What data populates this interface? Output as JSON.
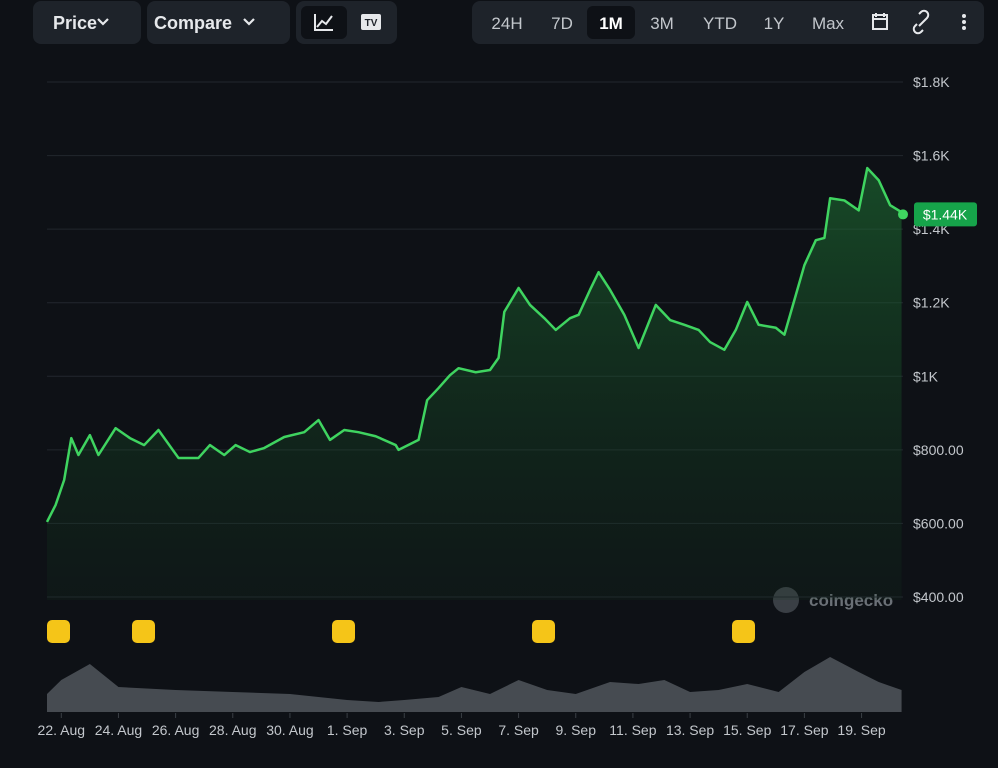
{
  "toolbar": {
    "dropdowns": [
      "Price",
      "Compare"
    ],
    "ranges": [
      "24H",
      "7D",
      "1M",
      "3M",
      "YTD",
      "1Y",
      "Max"
    ],
    "active_range": 2
  },
  "watermark": "coingecko",
  "chart_data": {
    "type": "line",
    "x": [
      -0.5,
      -0.2,
      0.1,
      0.35,
      0.6,
      1.0,
      1.3,
      1.9,
      2.4,
      2.9,
      3.4,
      4.1,
      4.8,
      5.2,
      5.7,
      6.1,
      6.6,
      7.1,
      7.8,
      8.5,
      9.0,
      9.4,
      9.9,
      10.4,
      11.0,
      11.7,
      11.8,
      12.5,
      12.8,
      13.2,
      13.6,
      13.9,
      14.5,
      15.0,
      15.3,
      15.5,
      16.0,
      16.4,
      16.9,
      17.3,
      17.8,
      18.1,
      18.5,
      18.8,
      19.2,
      19.7,
      20.2,
      20.8,
      21.3,
      21.8,
      22.3,
      22.7,
      23.2,
      23.6,
      24.0,
      24.4,
      25.0,
      25.3,
      25.7,
      26.0,
      26.4,
      26.7,
      26.9,
      27.4,
      27.9,
      28.2,
      28.6,
      29.0,
      29.4
    ],
    "series": [
      {
        "name": "Price",
        "color": "#3fd460",
        "values": [
          604,
          650,
          718,
          832,
          786,
          840,
          786,
          859,
          832,
          813,
          854,
          778,
          778,
          813,
          786,
          813,
          794,
          805,
          835,
          848,
          881,
          827,
          854,
          848,
          837,
          813,
          800,
          827,
          935,
          968,
          1003,
          1022,
          1011,
          1017,
          1050,
          1175,
          1240,
          1194,
          1158,
          1126,
          1158,
          1167,
          1235,
          1283,
          1235,
          1167,
          1077,
          1194,
          1153,
          1140,
          1126,
          1093,
          1072,
          1126,
          1202,
          1140,
          1132,
          1113,
          1221,
          1302,
          1370,
          1376,
          1484,
          1478,
          1451,
          1566,
          1533,
          1465,
          1446
        ]
      }
    ],
    "current_price": 1440,
    "current_price_label": "$1.44K",
    "xlim": [
      -0.5,
      29.45
    ],
    "xticks": [
      {
        "value": 0,
        "label": "22. Aug"
      },
      {
        "value": 2,
        "label": "24. Aug"
      },
      {
        "value": 4,
        "label": "26. Aug"
      },
      {
        "value": 6,
        "label": "28. Aug"
      },
      {
        "value": 8,
        "label": "30. Aug"
      },
      {
        "value": 10,
        "label": "1. Sep"
      },
      {
        "value": 12,
        "label": "3. Sep"
      },
      {
        "value": 14,
        "label": "5. Sep"
      },
      {
        "value": 16,
        "label": "7. Sep"
      },
      {
        "value": 18,
        "label": "9. Sep"
      },
      {
        "value": 20,
        "label": "11. Sep"
      },
      {
        "value": 22,
        "label": "13. Sep"
      },
      {
        "value": 24,
        "label": "15. Sep"
      },
      {
        "value": 26,
        "label": "17. Sep"
      },
      {
        "value": 28,
        "label": "19. Sep"
      }
    ],
    "ylim": [
      400,
      1800
    ],
    "yticks": [
      {
        "value": 1800,
        "label": "$1.8K"
      },
      {
        "value": 1600,
        "label": "$1.6K"
      },
      {
        "value": 1400,
        "label": "$1.4K"
      },
      {
        "value": 1200,
        "label": "$1.2K"
      },
      {
        "value": 1000,
        "label": "$1K"
      },
      {
        "value": 800,
        "label": "$800.00"
      },
      {
        "value": 600,
        "label": "$600.00"
      },
      {
        "value": 400,
        "label": "$400.00"
      }
    ],
    "grid": true,
    "volume": {
      "color": "#5a5f66",
      "x": [
        -0.5,
        0.0,
        1.0,
        2.0,
        4.0,
        6.0,
        8.0,
        9.0,
        10.0,
        11.1,
        12.0,
        13.2,
        14.0,
        15.0,
        16.0,
        17.0,
        18.0,
        19.2,
        20.2,
        21.1,
        22.0,
        23.0,
        24.0,
        25.1,
        26.0,
        26.9,
        27.9,
        28.6,
        29.4
      ],
      "values": [
        18,
        32,
        48,
        25,
        22,
        20,
        18,
        15,
        12,
        10,
        12,
        15,
        25,
        18,
        32,
        22,
        18,
        30,
        28,
        32,
        20,
        22,
        28,
        20,
        40,
        55,
        40,
        30,
        22
      ],
      "ylim": [
        0,
        60
      ]
    }
  }
}
